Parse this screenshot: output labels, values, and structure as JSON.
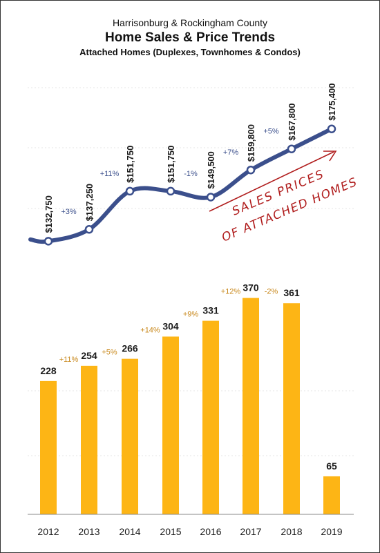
{
  "title_lines": [
    "Harrisonburg & Rockingham County",
    "Home Sales & Price Trends",
    "Attached Homes (Duplexes, Townhomes & Condos)"
  ],
  "colors": {
    "line": "#3b4f8c",
    "bar": "#fdb515",
    "price_change": "#3b4f8c",
    "sales_change": "#c8871a",
    "annotation": "#b01c1c",
    "grid": "#e4e4e4"
  },
  "annotation": {
    "line1": "SALES PRICES",
    "line2": "OF ATTACHED HOMES"
  },
  "chart_data": [
    {
      "type": "line",
      "categories": [
        "2012",
        "2013",
        "2014",
        "2015",
        "2016",
        "2017",
        "2018",
        "2019"
      ],
      "values": [
        132750,
        137250,
        151750,
        151750,
        149500,
        159800,
        167800,
        175400
      ],
      "value_labels": [
        "$132,750",
        "$137,250",
        "$151,750",
        "$151,750",
        "$149,500",
        "$159,800",
        "$167,800",
        "$175,400"
      ],
      "change_labels": [
        "+3%",
        "+11%",
        "",
        "-1%",
        "+7%",
        "+5%"
      ],
      "ylim": [
        120000,
        195000
      ],
      "grid": true
    },
    {
      "type": "bar",
      "categories": [
        "2012",
        "2013",
        "2014",
        "2015",
        "2016",
        "2017",
        "2018",
        "2019"
      ],
      "values": [
        228,
        254,
        266,
        304,
        331,
        370,
        361,
        65
      ],
      "change_labels": [
        "+11%",
        "+5%",
        "+14%",
        "+9%",
        "+12%",
        "-2%"
      ],
      "ylim": [
        0,
        425
      ],
      "grid": true
    }
  ]
}
